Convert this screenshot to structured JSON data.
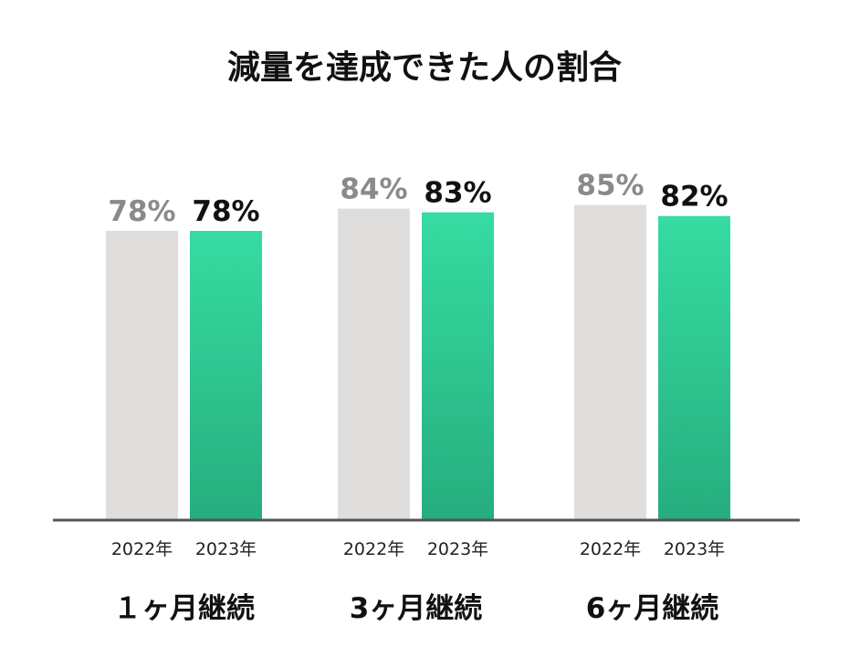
{
  "chart_data": {
    "type": "bar",
    "title": "減量を達成できた人の割合",
    "categories": [
      "１ヶ月継続",
      "3ヶ月継続",
      "6ヶ月継続"
    ],
    "series": [
      {
        "name": "2022年",
        "values": [
          78,
          84,
          85
        ],
        "labels": [
          "78%",
          "84%",
          "85%"
        ]
      },
      {
        "name": "2023年",
        "values": [
          78,
          83,
          82
        ],
        "labels": [
          "78%",
          "83%",
          "82%"
        ]
      }
    ],
    "ylim": [
      0,
      100
    ],
    "grid": false,
    "colors": {
      "series_2022": "#dfdedc",
      "series_2023_top": "#36dca2",
      "series_2023_bottom": "#26ad7e",
      "baseline": "#555555"
    }
  }
}
